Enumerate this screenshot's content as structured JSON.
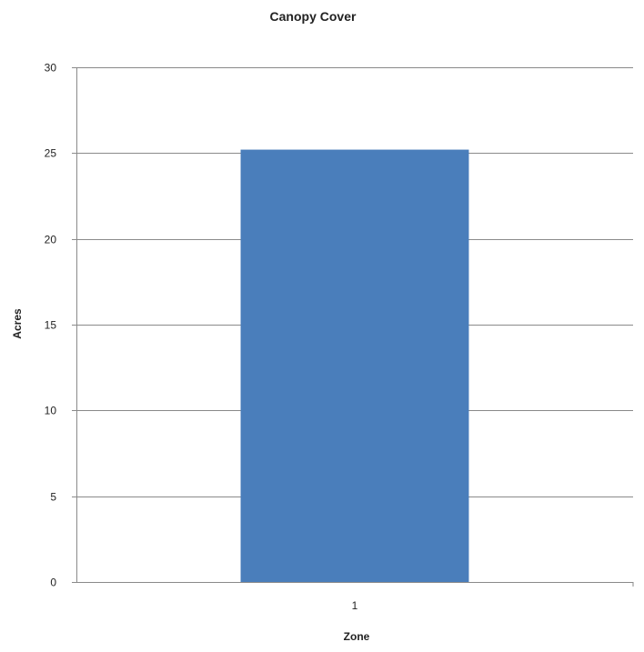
{
  "chart_data": {
    "type": "bar",
    "title": "Canopy Cover",
    "xlabel": "Zone",
    "ylabel": "Acres",
    "categories": [
      "1"
    ],
    "values": [
      25.2
    ],
    "ylim": [
      0,
      30
    ],
    "yticks": [
      0,
      5,
      10,
      15,
      20,
      25,
      30
    ],
    "grid": true,
    "legend": "none",
    "colors": {
      "bar": "#4a7ebb",
      "grid": "#8a8a8a",
      "axis": "#8a8a8a",
      "text": "#222222"
    }
  }
}
